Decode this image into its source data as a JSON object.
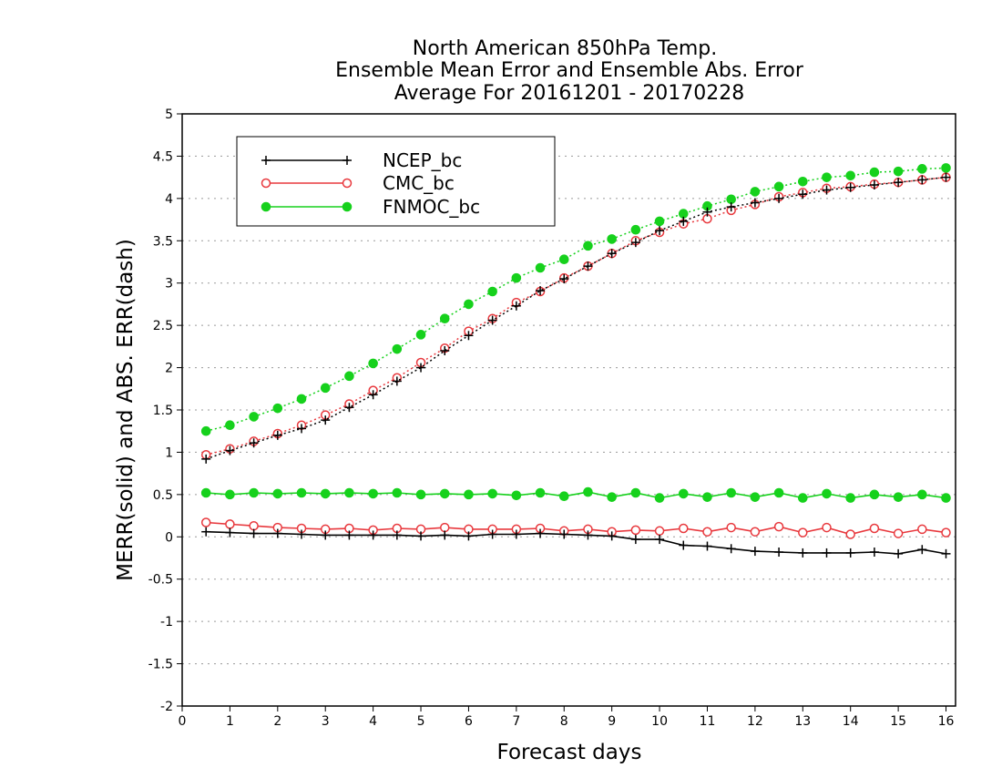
{
  "chart_data": {
    "type": "line",
    "title_lines": [
      "North American 850hPa Temp.",
      "Ensemble Mean Error and Ensemble Abs. Error",
      "Average For 20161201 - 20170228"
    ],
    "xlabel": "Forecast days",
    "ylabel": "MERR(solid) and ABS. ERR(dash)",
    "xlim": [
      0,
      16.2
    ],
    "ylim": [
      -2,
      5
    ],
    "xticks": [
      0,
      1,
      2,
      3,
      4,
      5,
      6,
      7,
      8,
      9,
      10,
      11,
      12,
      13,
      14,
      15,
      16
    ],
    "yticks": [
      -2,
      -1.5,
      -1,
      -0.5,
      0,
      0.5,
      1,
      1.5,
      2,
      2.5,
      3,
      3.5,
      4,
      4.5,
      5
    ],
    "ytick_labels": [
      "-2",
      "-1.5",
      "-1",
      "-0.5",
      "0",
      "0.5",
      "1",
      "1.5",
      "2",
      "2.5",
      "3",
      "3.5",
      "4",
      "4.5",
      "5"
    ],
    "grid": "horizontal dotted",
    "legend_position": "top-left",
    "x": [
      0.5,
      1,
      1.5,
      2,
      2.5,
      3,
      3.5,
      4,
      4.5,
      5,
      5.5,
      6,
      6.5,
      7,
      7.5,
      8,
      8.5,
      9,
      9.5,
      10,
      10.5,
      11,
      11.5,
      12,
      12.5,
      13,
      13.5,
      14,
      14.5,
      15,
      15.5,
      16
    ],
    "series": [
      {
        "name": "NCEP_bc",
        "color": "#000000",
        "marker": "plus",
        "merr": [
          0.06,
          0.05,
          0.04,
          0.04,
          0.03,
          0.02,
          0.02,
          0.02,
          0.02,
          0.01,
          0.02,
          0.01,
          0.03,
          0.03,
          0.04,
          0.03,
          0.02,
          0.01,
          -0.03,
          -0.03,
          -0.1,
          -0.11,
          -0.14,
          -0.17,
          -0.18,
          -0.19,
          -0.19,
          -0.19,
          -0.18,
          -0.2,
          -0.15,
          -0.2
        ],
        "abs_err": [
          0.92,
          1.02,
          1.11,
          1.2,
          1.28,
          1.38,
          1.53,
          1.68,
          1.84,
          2.0,
          2.2,
          2.38,
          2.56,
          2.73,
          2.91,
          3.05,
          3.2,
          3.35,
          3.48,
          3.62,
          3.73,
          3.84,
          3.9,
          3.95,
          4.0,
          4.05,
          4.1,
          4.13,
          4.16,
          4.19,
          4.22,
          4.25
        ]
      },
      {
        "name": "CMC_bc",
        "color": "#e8383d",
        "marker": "open-circle",
        "merr": [
          0.17,
          0.15,
          0.13,
          0.11,
          0.1,
          0.09,
          0.1,
          0.08,
          0.1,
          0.09,
          0.11,
          0.09,
          0.09,
          0.09,
          0.1,
          0.07,
          0.09,
          0.06,
          0.08,
          0.07,
          0.1,
          0.06,
          0.11,
          0.06,
          0.12,
          0.05,
          0.11,
          0.03,
          0.1,
          0.04,
          0.09,
          0.05
        ],
        "abs_err": [
          0.97,
          1.04,
          1.13,
          1.22,
          1.32,
          1.44,
          1.57,
          1.73,
          1.88,
          2.06,
          2.23,
          2.43,
          2.58,
          2.77,
          2.9,
          3.06,
          3.2,
          3.35,
          3.5,
          3.6,
          3.7,
          3.76,
          3.86,
          3.93,
          4.02,
          4.07,
          4.12,
          4.14,
          4.17,
          4.19,
          4.22,
          4.25
        ]
      },
      {
        "name": "FNMOC_bc",
        "color": "#16d11c",
        "marker": "filled-circle",
        "merr": [
          0.52,
          0.5,
          0.52,
          0.51,
          0.52,
          0.51,
          0.52,
          0.51,
          0.52,
          0.5,
          0.51,
          0.5,
          0.51,
          0.49,
          0.52,
          0.48,
          0.53,
          0.47,
          0.52,
          0.46,
          0.51,
          0.47,
          0.52,
          0.47,
          0.52,
          0.46,
          0.51,
          0.46,
          0.5,
          0.47,
          0.5,
          0.46
        ],
        "abs_err": [
          1.25,
          1.32,
          1.42,
          1.52,
          1.63,
          1.76,
          1.9,
          2.05,
          2.22,
          2.39,
          2.58,
          2.75,
          2.9,
          3.06,
          3.18,
          3.28,
          3.44,
          3.52,
          3.63,
          3.73,
          3.82,
          3.91,
          3.99,
          4.08,
          4.14,
          4.2,
          4.25,
          4.27,
          4.31,
          4.32,
          4.35,
          4.36
        ]
      }
    ]
  }
}
